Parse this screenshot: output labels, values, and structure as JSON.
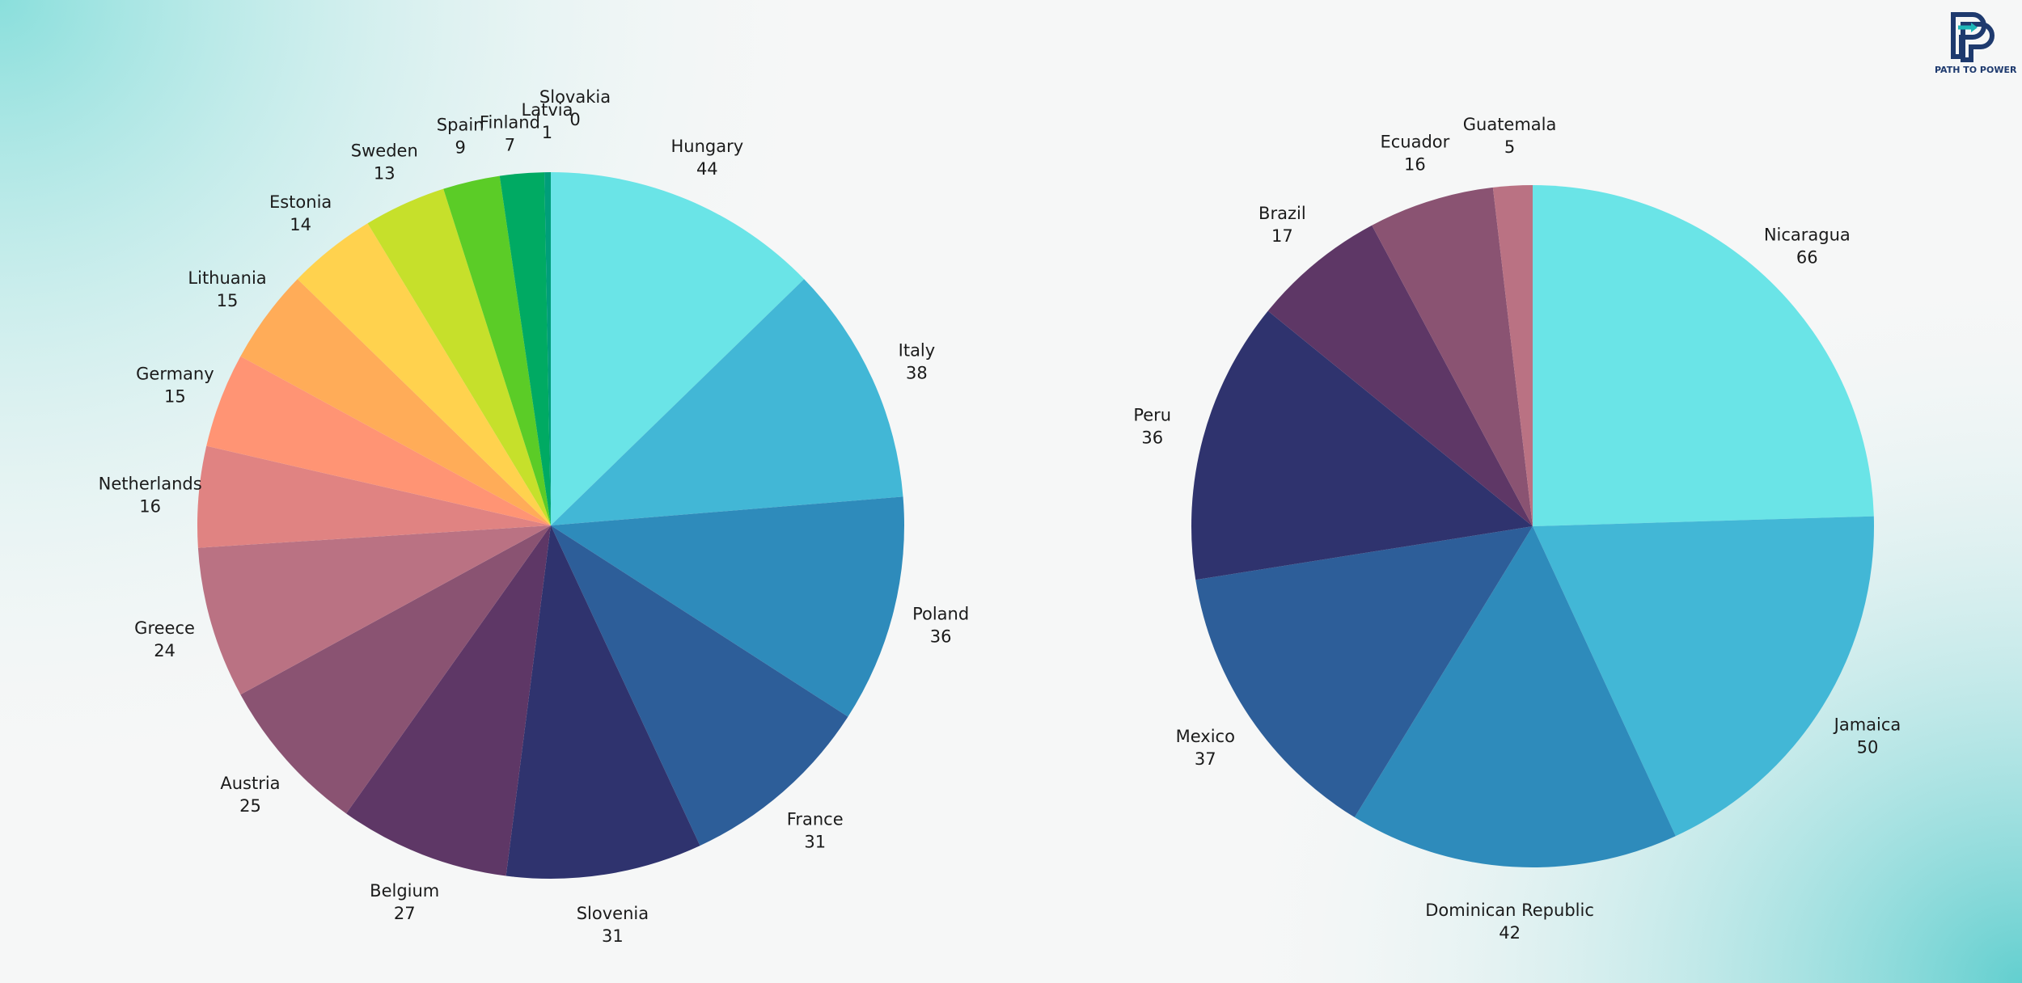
{
  "logo": {
    "text": "PATH TO POWER",
    "colors": [
      "#1e3a6e",
      "#1fb7b8"
    ]
  },
  "chart_data": [
    {
      "type": "pie",
      "title": "",
      "start": "12 o'clock",
      "direction": "clockwise",
      "slices": [
        {
          "label": "Hungary",
          "value": 44,
          "color": "#6ae4e7"
        },
        {
          "label": "Italy",
          "value": 38,
          "color": "#42b7d6"
        },
        {
          "label": "Poland",
          "value": 36,
          "color": "#2e8bbb"
        },
        {
          "label": "France",
          "value": 31,
          "color": "#2d5e99"
        },
        {
          "label": "Slovenia",
          "value": 31,
          "color": "#2f336e"
        },
        {
          "label": "Belgium",
          "value": 27,
          "color": "#5e3766"
        },
        {
          "label": "Austria",
          "value": 25,
          "color": "#8a5372"
        },
        {
          "label": "Greece",
          "value": 24,
          "color": "#ba7283"
        },
        {
          "label": "Netherlands",
          "value": 16,
          "color": "#e08382"
        },
        {
          "label": "Germany",
          "value": 15,
          "color": "#ff9474"
        },
        {
          "label": "Lithuania",
          "value": 15,
          "color": "#ffac58"
        },
        {
          "label": "Estonia",
          "value": 14,
          "color": "#ffd24e"
        },
        {
          "label": "Sweden",
          "value": 13,
          "color": "#c6e02b"
        },
        {
          "label": "Spain",
          "value": 9,
          "color": "#5bcc27"
        },
        {
          "label": "Finland",
          "value": 7,
          "color": "#00aa63"
        },
        {
          "label": "Latvia",
          "value": 1,
          "color": "#009e7a"
        },
        {
          "label": "Slovakia",
          "value": 0,
          "color": "#008f8f"
        }
      ]
    },
    {
      "type": "pie",
      "title": "",
      "start": "12 o'clock",
      "direction": "clockwise",
      "slices": [
        {
          "label": "Nicaragua",
          "value": 66,
          "color": "#6ae4e7"
        },
        {
          "label": "Jamaica",
          "value": 50,
          "color": "#42b7d6"
        },
        {
          "label": "Dominican Republic",
          "value": 42,
          "color": "#2e8bbb"
        },
        {
          "label": "Mexico",
          "value": 37,
          "color": "#2d5e99"
        },
        {
          "label": "Peru",
          "value": 36,
          "color": "#2f336e"
        },
        {
          "label": "Brazil",
          "value": 17,
          "color": "#5e3766"
        },
        {
          "label": "Ecuador",
          "value": 16,
          "color": "#8a5372"
        },
        {
          "label": "Guatemala",
          "value": 5,
          "color": "#ba7283"
        }
      ]
    }
  ]
}
